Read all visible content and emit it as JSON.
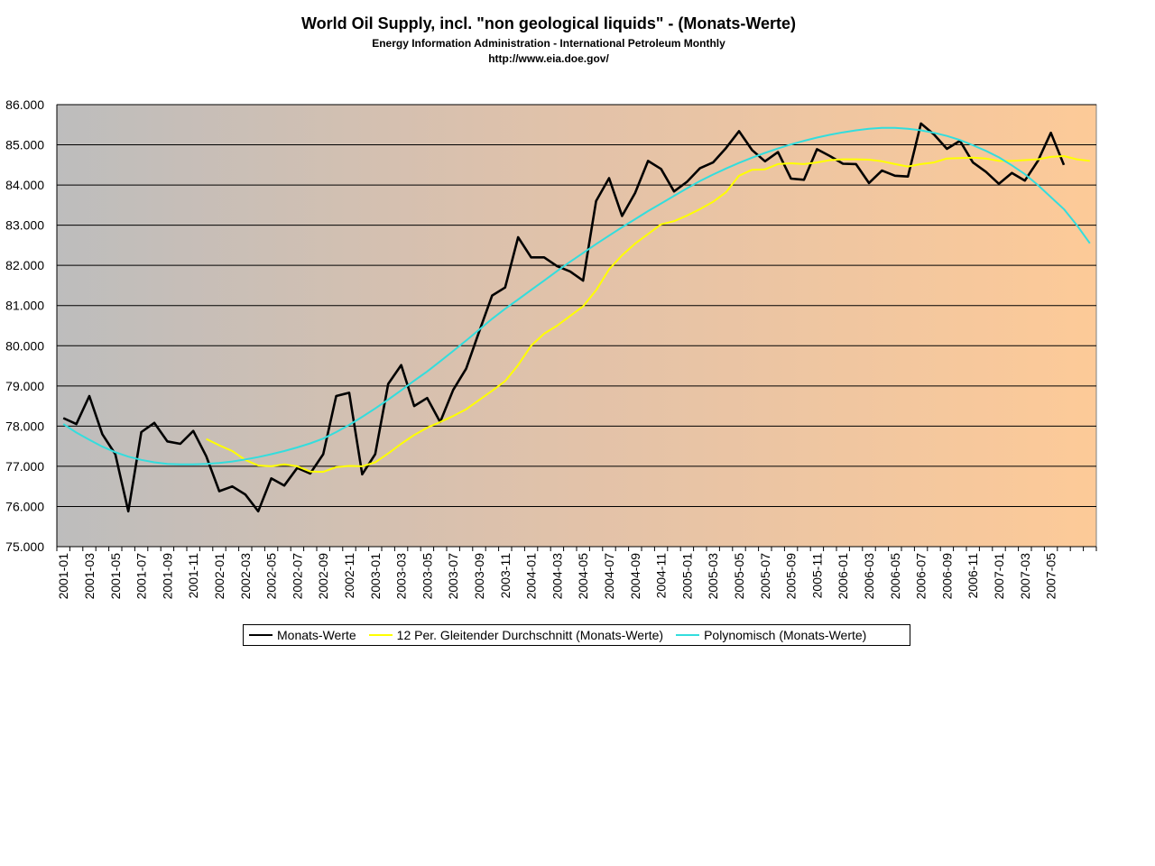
{
  "chart_data": {
    "type": "line",
    "title": "World Oil Supply, incl. \"non geological liquids\" -  (Monats-Werte)",
    "subtitles": [
      "Energy Information Administration  - International Petroleum Monthly",
      "http://www.eia.doe.gov/"
    ],
    "xlabel": "",
    "ylabel": "",
    "ylim": [
      75000,
      86000
    ],
    "yticks": [
      "75.000",
      "76.000",
      "77.000",
      "78.000",
      "79.000",
      "80.000",
      "81.000",
      "82.000",
      "83.000",
      "84.000",
      "85.000",
      "86.000"
    ],
    "ytick_values": [
      75000,
      76000,
      77000,
      78000,
      79000,
      80000,
      81000,
      82000,
      83000,
      84000,
      85000,
      86000
    ],
    "grid": true,
    "legend_position": "bottom",
    "categories": [
      "2001-01",
      "2001-02",
      "2001-03",
      "2001-04",
      "2001-05",
      "2001-06",
      "2001-07",
      "2001-08",
      "2001-09",
      "2001-10",
      "2001-11",
      "2001-12",
      "2002-01",
      "2002-02",
      "2002-03",
      "2002-04",
      "2002-05",
      "2002-06",
      "2002-07",
      "2002-08",
      "2002-09",
      "2002-10",
      "2002-11",
      "2002-12",
      "2003-01",
      "2003-02",
      "2003-03",
      "2003-04",
      "2003-05",
      "2003-06",
      "2003-07",
      "2003-08",
      "2003-09",
      "2003-10",
      "2003-11",
      "2003-12",
      "2004-01",
      "2004-02",
      "2004-03",
      "2004-04",
      "2004-05",
      "2004-06",
      "2004-07",
      "2004-08",
      "2004-09",
      "2004-10",
      "2004-11",
      "2004-12",
      "2005-01",
      "2005-02",
      "2005-03",
      "2005-04",
      "2005-05",
      "2005-06",
      "2005-07",
      "2005-08",
      "2005-09",
      "2005-10",
      "2005-11",
      "2005-12",
      "2006-01",
      "2006-02",
      "2006-03",
      "2006-04",
      "2006-05",
      "2006-06",
      "2006-07",
      "2006-08",
      "2006-09",
      "2006-10",
      "2006-11",
      "2006-12",
      "2007-01",
      "2007-02",
      "2007-03",
      "2007-04",
      "2007-05",
      "2007-06",
      "2007-07",
      "2007-08"
    ],
    "tick_labels": [
      "2001-01",
      "2001-03",
      "2001-05",
      "2001-07",
      "2001-09",
      "2001-11",
      "2002-01",
      "2002-03",
      "2002-05",
      "2002-07",
      "2002-09",
      "2002-11",
      "2003-01",
      "2003-03",
      "2003-05",
      "2003-07",
      "2003-09",
      "2003-11",
      "2004-01",
      "2004-03",
      "2004-05",
      "2004-07",
      "2004-09",
      "2004-11",
      "2005-01",
      "2005-03",
      "2005-05",
      "2005-07",
      "2005-09",
      "2005-11",
      "2006-01",
      "2006-03",
      "2006-05",
      "2006-07",
      "2006-09",
      "2006-11",
      "2007-01",
      "2007-03",
      "2007-05"
    ],
    "series": [
      {
        "name": "Monats-Werte",
        "color": "#000000",
        "values": [
          78200,
          78050,
          78750,
          77800,
          77300,
          75880,
          77850,
          78080,
          77620,
          77560,
          77880,
          77250,
          76380,
          76500,
          76300,
          75880,
          76700,
          76520,
          76960,
          76820,
          77300,
          78750,
          78830,
          76800,
          77300,
          79050,
          79520,
          78500,
          78700,
          78100,
          78900,
          79430,
          80350,
          81250,
          81450,
          82700,
          82200,
          82200,
          81980,
          81850,
          81620,
          83600,
          84170,
          83230,
          83800,
          84600,
          84400,
          83840,
          84080,
          84420,
          84560,
          84920,
          85340,
          84870,
          84590,
          84820,
          84160,
          84130,
          84890,
          84720,
          84530,
          84520,
          84050,
          84360,
          84230,
          84210,
          85530,
          85260,
          84900,
          85100,
          84560,
          84330,
          84030,
          84300,
          84110,
          84600,
          85300,
          84500,
          null,
          null
        ]
      },
      {
        "name": "12 Per. Gleitender Durchschnitt (Monats-Werte)",
        "color": "#ffff00",
        "values": [
          null,
          null,
          null,
          null,
          null,
          null,
          null,
          null,
          null,
          null,
          null,
          77680,
          77520,
          77380,
          77160,
          77020,
          77000,
          77050,
          77000,
          76870,
          76860,
          76980,
          77010,
          77000,
          77100,
          77320,
          77560,
          77780,
          77960,
          78100,
          78250,
          78420,
          78650,
          78880,
          79120,
          79520,
          80000,
          80300,
          80500,
          80740,
          80980,
          81380,
          81900,
          82250,
          82540,
          82780,
          83020,
          83100,
          83240,
          83400,
          83580,
          83820,
          84230,
          84380,
          84390,
          84520,
          84540,
          84520,
          84560,
          84620,
          84640,
          84640,
          84630,
          84590,
          84520,
          84460,
          84520,
          84560,
          84660,
          84670,
          84680,
          84660,
          84600,
          84600,
          84620,
          84640,
          84700,
          84720,
          84640,
          84600
        ]
      },
      {
        "name": "Polynomisch (Monats-Werte)",
        "color": "#33dddd",
        "values": [
          78050,
          77840,
          77660,
          77490,
          77350,
          77240,
          77160,
          77100,
          77060,
          77050,
          77050,
          77060,
          77080,
          77120,
          77170,
          77230,
          77300,
          77380,
          77470,
          77570,
          77690,
          77850,
          78030,
          78230,
          78440,
          78660,
          78890,
          79130,
          79360,
          79610,
          79870,
          80130,
          80400,
          80670,
          80920,
          81150,
          81390,
          81620,
          81860,
          82090,
          82310,
          82530,
          82740,
          82950,
          83150,
          83350,
          83540,
          83730,
          83920,
          84100,
          84260,
          84410,
          84550,
          84680,
          84800,
          84910,
          85010,
          85100,
          85180,
          85250,
          85310,
          85360,
          85400,
          85420,
          85420,
          85400,
          85360,
          85300,
          85220,
          85120,
          84990,
          84850,
          84690,
          84490,
          84270,
          84000,
          83700,
          83400,
          83000,
          82550
        ]
      }
    ]
  }
}
